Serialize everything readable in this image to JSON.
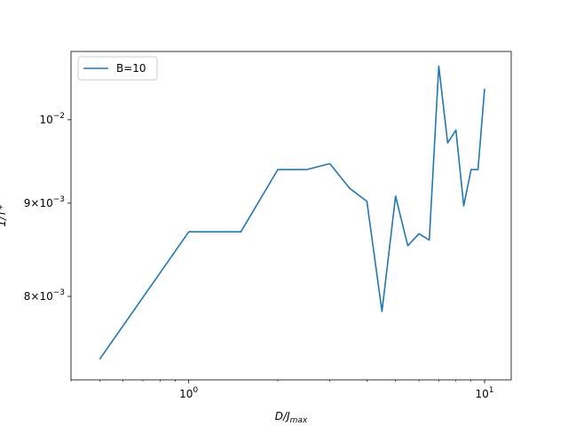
{
  "chart_data": {
    "type": "line",
    "title": "",
    "xlabel": "D/J_max",
    "ylabel": "1/T*",
    "xscale": "log",
    "yscale": "log",
    "xlim": [
      0.4,
      12.3
    ],
    "ylim": [
      0.0072,
      0.0109
    ],
    "grid": false,
    "legend_position": "upper left",
    "x_ticks_major": [
      {
        "value": 1,
        "label": "10^0"
      },
      {
        "value": 10,
        "label": "10^1"
      }
    ],
    "y_ticks_labeled": [
      {
        "value": 0.008,
        "label": "8×10^-3"
      },
      {
        "value": 0.009,
        "label": "9×10^-3"
      },
      {
        "value": 0.01,
        "label": "10^-2"
      }
    ],
    "series": [
      {
        "name": "B=10",
        "color": "#1f77b4",
        "x": [
          0.5,
          1.0,
          1.5,
          2.0,
          2.5,
          3.0,
          3.5,
          4.0,
          4.5,
          5.0,
          5.5,
          6.0,
          6.5,
          7.0,
          7.5,
          8.0,
          8.5,
          9.0,
          9.5,
          10.0
        ],
        "y": [
          0.00739,
          0.00868,
          0.00868,
          0.00939,
          0.00939,
          0.00946,
          0.00917,
          0.00902,
          0.00785,
          0.00908,
          0.00853,
          0.00866,
          0.00859,
          0.0107,
          0.00971,
          0.00987,
          0.00897,
          0.00939,
          0.00939,
          0.0104
        ]
      }
    ]
  }
}
